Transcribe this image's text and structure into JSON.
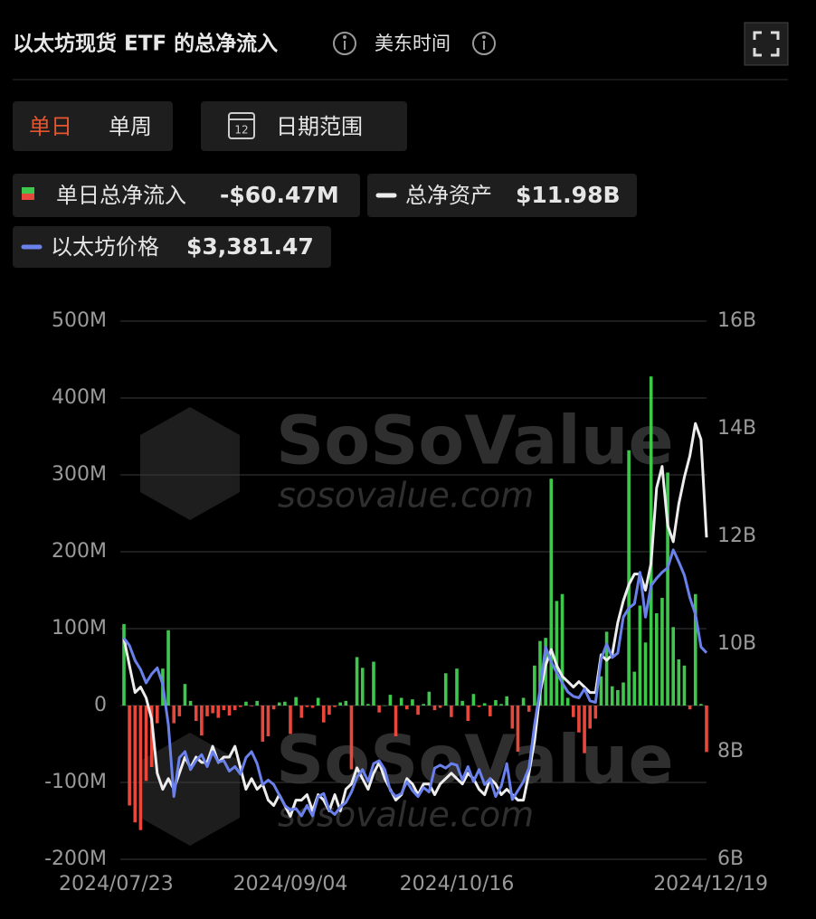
{
  "ui": {
    "title": "以太坊现货 ETF 的总净流入",
    "timezone": "美东时间",
    "tabs": [
      "单日",
      "单周"
    ],
    "date_range": "日期范围",
    "calendar_day": "12",
    "watermark": [
      "SoSoValue",
      "sosovalue.com"
    ]
  },
  "chart_data": {
    "type": "bar",
    "categories": [
      "2024/07/23",
      null,
      null,
      null,
      null,
      null,
      null,
      null,
      null,
      null,
      null,
      null,
      null,
      null,
      null,
      null,
      null,
      null,
      null,
      null,
      null,
      null,
      null,
      null,
      null,
      null,
      null,
      null,
      null,
      null,
      "2024/09/04",
      null,
      null,
      null,
      null,
      null,
      null,
      null,
      null,
      null,
      null,
      null,
      null,
      null,
      null,
      null,
      null,
      null,
      null,
      null,
      null,
      null,
      null,
      null,
      null,
      null,
      null,
      null,
      null,
      null,
      "2024/10/16",
      null,
      null,
      null,
      null,
      null,
      null,
      null,
      null,
      null,
      null,
      null,
      null,
      null,
      null,
      null,
      null,
      null,
      null,
      null,
      null,
      null,
      null,
      null,
      null,
      null,
      null,
      null,
      null,
      null,
      null,
      null,
      null,
      null,
      null,
      null,
      null,
      null,
      null,
      null,
      null,
      null,
      null,
      null,
      null,
      "2024/12/19"
    ],
    "series": [
      {
        "name": "单日总净流入",
        "type": "bar",
        "value_label": "-$60.47M",
        "color": "#3fc74d",
        "negative_color": "#e8483b",
        "values": [
          106,
          -130,
          -152,
          -162,
          -98,
          -80,
          -23,
          48,
          98,
          -23,
          -14,
          28,
          6,
          -20,
          -39,
          -14,
          -10,
          -16,
          -6,
          -13,
          -6,
          -2,
          5,
          -1,
          6,
          -47,
          -40,
          -5,
          4,
          5,
          -37,
          11,
          -16,
          -2,
          -3,
          10,
          -22,
          -12,
          -2,
          4,
          6,
          -83,
          63,
          49,
          2,
          57,
          -9,
          0,
          14,
          -40,
          10,
          -5,
          8,
          -12,
          2,
          18,
          -6,
          -3,
          42,
          -15,
          48,
          6,
          -20,
          15,
          -2,
          3,
          -14,
          7,
          2,
          12,
          -30,
          -60,
          10,
          -8,
          52,
          84,
          88,
          295,
          136,
          145,
          10,
          -15,
          -35,
          -62,
          -30,
          -17,
          38,
          96,
          25,
          20,
          30,
          332,
          44,
          130,
          82,
          428,
          120,
          140,
          303,
          102,
          60,
          52,
          -5,
          145,
          2,
          -60.47
        ]
      },
      {
        "name": "总净资产",
        "type": "line",
        "axis": "y2",
        "value_label": "$11.98B",
        "color": "#ededed",
        "values": [
          10.1,
          9.6,
          9.1,
          9.2,
          9.0,
          8.6,
          7.6,
          7.3,
          7.5,
          7.3,
          7.6,
          7.9,
          7.7,
          7.9,
          7.8,
          7.8,
          8.1,
          7.8,
          7.9,
          7.9,
          8.1,
          7.7,
          7.3,
          7.5,
          7.3,
          7.4,
          7.1,
          7.0,
          7.2,
          7.0,
          6.8,
          7.1,
          7.1,
          7.2,
          6.9,
          7.2,
          7.1,
          6.9,
          7.2,
          6.9,
          7.3,
          7.4,
          7.7,
          7.5,
          7.3,
          7.6,
          7.8,
          7.5,
          7.3,
          7.1,
          7.2,
          7.5,
          7.4,
          7.2,
          7.4,
          7.4,
          7.2,
          7.4,
          7.5,
          7.6,
          7.5,
          7.4,
          7.6,
          7.5,
          7.3,
          7.2,
          7.5,
          7.4,
          7.2,
          7.3,
          7.2,
          7.1,
          7.1,
          7.6,
          8.2,
          9.1,
          9.6,
          9.9,
          9.6,
          9.4,
          9.3,
          9.2,
          9.3,
          9.2,
          9.1,
          9.1,
          9.8,
          9.7,
          9.8,
          10.4,
          10.8,
          11.1,
          11.3,
          11.3,
          11.0,
          11.5,
          12.9,
          13.3,
          12.2,
          11.9,
          12.6,
          13.1,
          13.5,
          14.1,
          13.8,
          11.98
        ]
      },
      {
        "name": "以太坊价格",
        "type": "line",
        "axis": "y3",
        "value_label": "$3,381.47",
        "color": "#6a80ea",
        "values": [
          3480,
          3430,
          3330,
          3270,
          3180,
          3240,
          3280,
          3170,
          2900,
          2420,
          2680,
          2720,
          2600,
          2660,
          2700,
          2620,
          2720,
          2650,
          2660,
          2590,
          2620,
          2570,
          2680,
          2720,
          2640,
          2500,
          2530,
          2500,
          2430,
          2360,
          2330,
          2340,
          2290,
          2360,
          2290,
          2420,
          2440,
          2330,
          2300,
          2350,
          2380,
          2450,
          2550,
          2600,
          2520,
          2640,
          2660,
          2600,
          2460,
          2420,
          2440,
          2520,
          2460,
          2420,
          2480,
          2450,
          2610,
          2630,
          2610,
          2640,
          2630,
          2530,
          2620,
          2520,
          2600,
          2500,
          2540,
          2420,
          2490,
          2640,
          2400,
          2460,
          2520,
          2610,
          2900,
          3140,
          3420,
          3320,
          3250,
          3180,
          3120,
          3090,
          3080,
          3140,
          3060,
          3050,
          3340,
          3440,
          3350,
          3380,
          3620,
          3680,
          3710,
          3920,
          3620,
          3830,
          3880,
          3920,
          3950,
          4070,
          3990,
          3900,
          3750,
          3640,
          3420,
          3381.47
        ]
      }
    ],
    "ylim": [
      -200,
      500
    ],
    "yticks": [
      {
        "value": -200,
        "label": "-200M"
      },
      {
        "value": -100,
        "label": "-100M"
      },
      0,
      {
        "value": 100,
        "label": "100M"
      },
      {
        "value": 200,
        "label": "200M"
      },
      {
        "value": 300,
        "label": "300M"
      },
      {
        "value": 400,
        "label": "400M"
      },
      {
        "value": 500,
        "label": "500M"
      }
    ],
    "y2lim": [
      6,
      16
    ],
    "y2ticks": [
      {
        "value": 6,
        "label": "6B"
      },
      {
        "value": 8,
        "label": "8B"
      },
      {
        "value": 10,
        "label": "10B"
      },
      {
        "value": 12,
        "label": "12B"
      },
      {
        "value": 14,
        "label": "14B"
      },
      {
        "value": 16,
        "label": "16B"
      }
    ],
    "y3lim": [
      2000,
      5600
    ],
    "grid": true
  }
}
